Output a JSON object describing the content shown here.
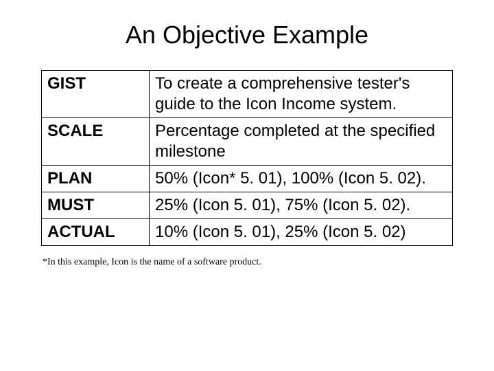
{
  "title": "An Objective Example",
  "table": {
    "rows": [
      {
        "label": "GIST",
        "value": "To create a comprehensive tester's guide to the Icon Income system."
      },
      {
        "label": "SCALE",
        "value": "Percentage completed at the specified milestone"
      },
      {
        "label": "PLAN",
        "value": "50% (Icon* 5. 01), 100% (Icon 5. 02)."
      },
      {
        "label": "MUST",
        "value": "25% (Icon 5. 01), 75% (Icon 5. 02)."
      },
      {
        "label": "ACTUAL",
        "value": "10% (Icon 5. 01), 25% (Icon 5. 02)"
      }
    ]
  },
  "footnote": "*In this example, Icon is the name of a software product."
}
